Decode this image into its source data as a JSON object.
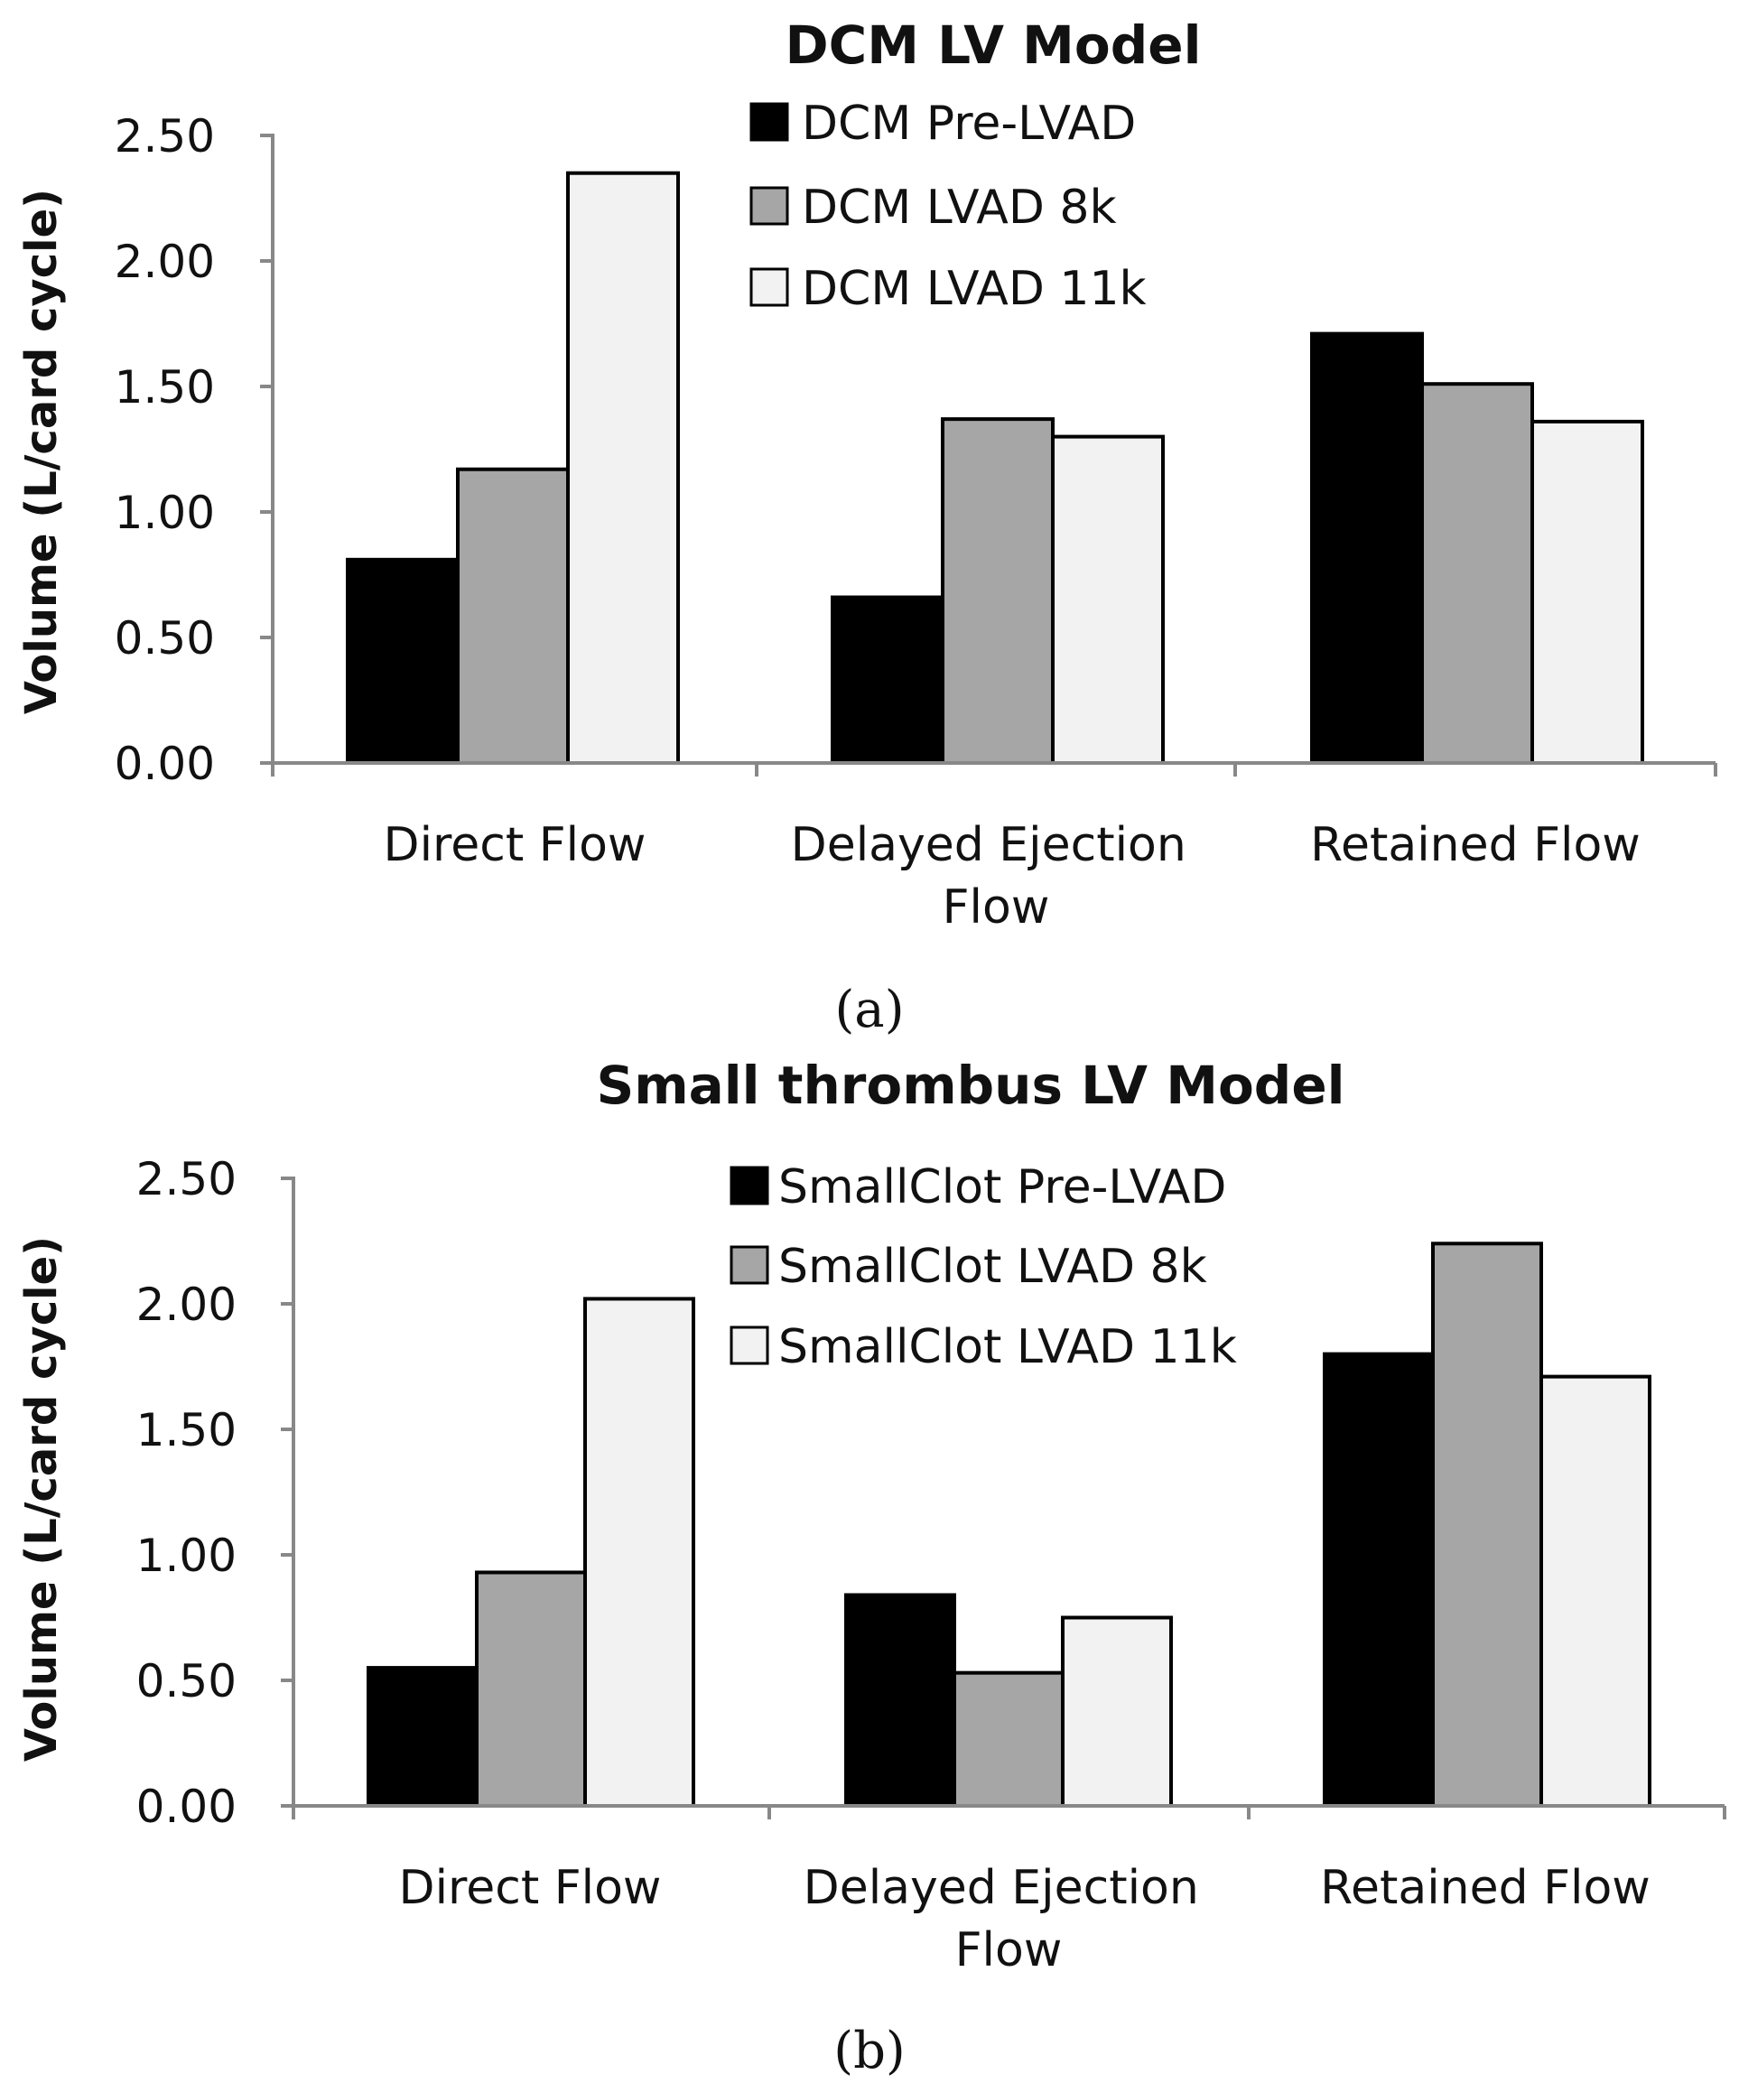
{
  "chart_data": [
    {
      "type": "bar",
      "title": "DCM LV Model",
      "panel_label": "(a)",
      "ylabel": "Volume (L/card cycle)",
      "xlabel": "",
      "ylim": [
        0,
        2.5
      ],
      "yticks": [
        "0.00",
        "0.50",
        "1.00",
        "1.50",
        "2.00",
        "2.50"
      ],
      "categories": [
        "Direct Flow",
        "Delayed Ejection Flow",
        "Retained Flow"
      ],
      "legend_position": "top-center",
      "grid": false,
      "series": [
        {
          "name": "DCM Pre-LVAD",
          "color": "#000000",
          "values": [
            0.81,
            0.66,
            1.71
          ]
        },
        {
          "name": "DCM LVAD 8k",
          "color": "#a6a6a6",
          "values": [
            1.17,
            1.37,
            1.51
          ]
        },
        {
          "name": "DCM LVAD 11k",
          "color": "#f2f2f2",
          "values": [
            2.35,
            1.3,
            1.36
          ]
        }
      ]
    },
    {
      "type": "bar",
      "title": "Small thrombus LV Model",
      "panel_label": "(b)",
      "ylabel": "Volume (L/card cycle)",
      "xlabel": "",
      "ylim": [
        0,
        2.5
      ],
      "yticks": [
        "0.00",
        "0.50",
        "1.00",
        "1.50",
        "2.00",
        "2.50"
      ],
      "categories": [
        "Direct Flow",
        "Delayed Ejection Flow",
        "Retained Flow"
      ],
      "legend_position": "top-center",
      "grid": false,
      "series": [
        {
          "name": "SmallClot Pre-LVAD",
          "color": "#000000",
          "values": [
            0.55,
            0.84,
            1.8
          ]
        },
        {
          "name": "SmallClot LVAD 8k",
          "color": "#a6a6a6",
          "values": [
            0.93,
            0.53,
            2.24
          ]
        },
        {
          "name": "SmallClot LVAD 11k",
          "color": "#f2f2f2",
          "values": [
            2.02,
            0.75,
            1.71
          ]
        }
      ]
    }
  ]
}
